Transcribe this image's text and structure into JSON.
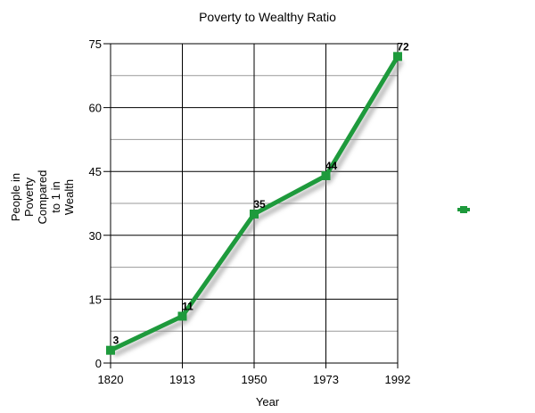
{
  "chart_data": {
    "type": "line",
    "title": "Poverty to Wealthy Ratio",
    "xlabel": "Year",
    "ylabel_lines": [
      "People in",
      "Poverty",
      "Compared",
      "to 1 in",
      "Wealth"
    ],
    "categories": [
      "1820",
      "1913",
      "1950",
      "1973",
      "1992"
    ],
    "series": [
      {
        "values": [
          3,
          11,
          35,
          44,
          72
        ],
        "color": "#1e9a3c"
      }
    ],
    "ylim": [
      0,
      75
    ],
    "yticks": [
      0,
      15,
      30,
      45,
      60,
      75
    ],
    "grid": true,
    "legend": "right"
  }
}
